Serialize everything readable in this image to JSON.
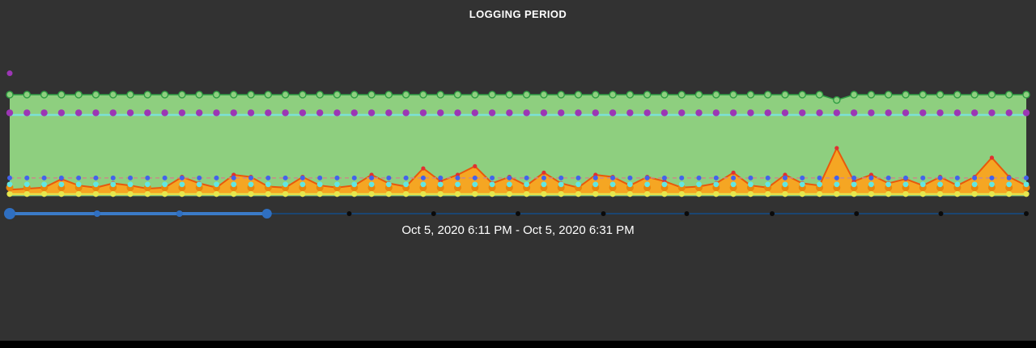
{
  "page": {
    "title": "LOGGING PERIOD",
    "caption": "Oct 5, 2020 6:11 PM - Oct 5, 2020 6:31 PM"
  },
  "colors": {
    "background": "#323232",
    "title_text": "#ffffff",
    "caption_text": "#ffffff",
    "bottom_bar": "#000000"
  },
  "chart_data": {
    "type": "area",
    "title": "LOGGING PERIOD",
    "x_axis_label": "Oct 5, 2020 6:11 PM - Oct 5, 2020 6:31 PM",
    "points": 60,
    "y_range": [
      0,
      100
    ],
    "grid": false,
    "legend": "none",
    "series": [
      {
        "name": "upper-envelope-band",
        "kind": "area",
        "fill": "#8ecf7f",
        "baseline": 2,
        "color": "#2f9e44",
        "width": 1.5,
        "marker": "open-circle",
        "marker_fill": "#8ecf7f",
        "marker_r": 4,
        "constant": 97,
        "overrides": {
          "48": 92
        }
      },
      {
        "name": "throughput-spikes-area",
        "kind": "area",
        "fill": "#f5a623",
        "baseline": 3,
        "color": "#e8590c",
        "width": 2,
        "marker": "dot",
        "marker_color": "#e03131",
        "marker_r": 2.6,
        "values": [
          8,
          9,
          10,
          18,
          12,
          10,
          14,
          12,
          9,
          10,
          20,
          14,
          10,
          22,
          20,
          11,
          10,
          20,
          12,
          10,
          12,
          22,
          14,
          11,
          28,
          16,
          22,
          30,
          14,
          20,
          12,
          24,
          14,
          10,
          22,
          20,
          12,
          20,
          16,
          10,
          11,
          14,
          24,
          12,
          10,
          22,
          14,
          12,
          47,
          16,
          22,
          14,
          18,
          12,
          20,
          12,
          20,
          38,
          20,
          12
        ]
      },
      {
        "name": "orange-inner-texture-dots",
        "kind": "markers",
        "marker": "dot",
        "marker_color": "#e8860b",
        "marker_r": 4.5,
        "constant": 10
      },
      {
        "name": "threshold-dashed-line",
        "kind": "line",
        "color": "#c98a8a",
        "width": 1.5,
        "dash": "5,4",
        "constant": 19
      },
      {
        "name": "cyan-level-line",
        "kind": "line",
        "color": "#7be0d6",
        "width": 2.5,
        "constant": 78
      },
      {
        "name": "purple-marker-row",
        "kind": "markers",
        "marker": "dot",
        "marker_color": "#9c36b5",
        "marker_r": 4.2,
        "constant": 80
      },
      {
        "name": "blue-marker-row",
        "kind": "markers",
        "marker": "dot",
        "marker_color": "#4263eb",
        "marker_r": 3,
        "constant": 19
      },
      {
        "name": "cyan-marker-row",
        "kind": "markers",
        "marker": "dot",
        "marker_color": "#63e6e2",
        "marker_r": 3.4,
        "constant": 13
      },
      {
        "name": "yellow-marker-row",
        "kind": "line+markers",
        "color": "#e6e84e",
        "width": 2,
        "marker": "dot",
        "marker_color": "#e6e84e",
        "marker_r": 3.6,
        "constant": 4
      },
      {
        "name": "outlier-purple-dot",
        "kind": "markers",
        "marker": "dot",
        "marker_color": "#9c36b5",
        "marker_r": 3.5,
        "points": [
          {
            "i": 0,
            "value": 117
          }
        ]
      }
    ],
    "timeline": {
      "track_color": "#1b4572",
      "selected_color": "#3b7bc8",
      "selected_range": [
        0,
        0.253
      ],
      "handle_color": "#2f6fc1",
      "handles": [
        {
          "pos": 0.0,
          "r": 7
        },
        {
          "pos": 0.086,
          "r": 4
        },
        {
          "pos": 0.167,
          "r": 4
        },
        {
          "pos": 0.253,
          "r": 6
        }
      ],
      "tick_color": "#0a0a0a",
      "tick_r": 3,
      "ticks": [
        0.334,
        0.417,
        0.5,
        0.584,
        0.666,
        0.75,
        0.833,
        0.916,
        1.0
      ]
    }
  }
}
